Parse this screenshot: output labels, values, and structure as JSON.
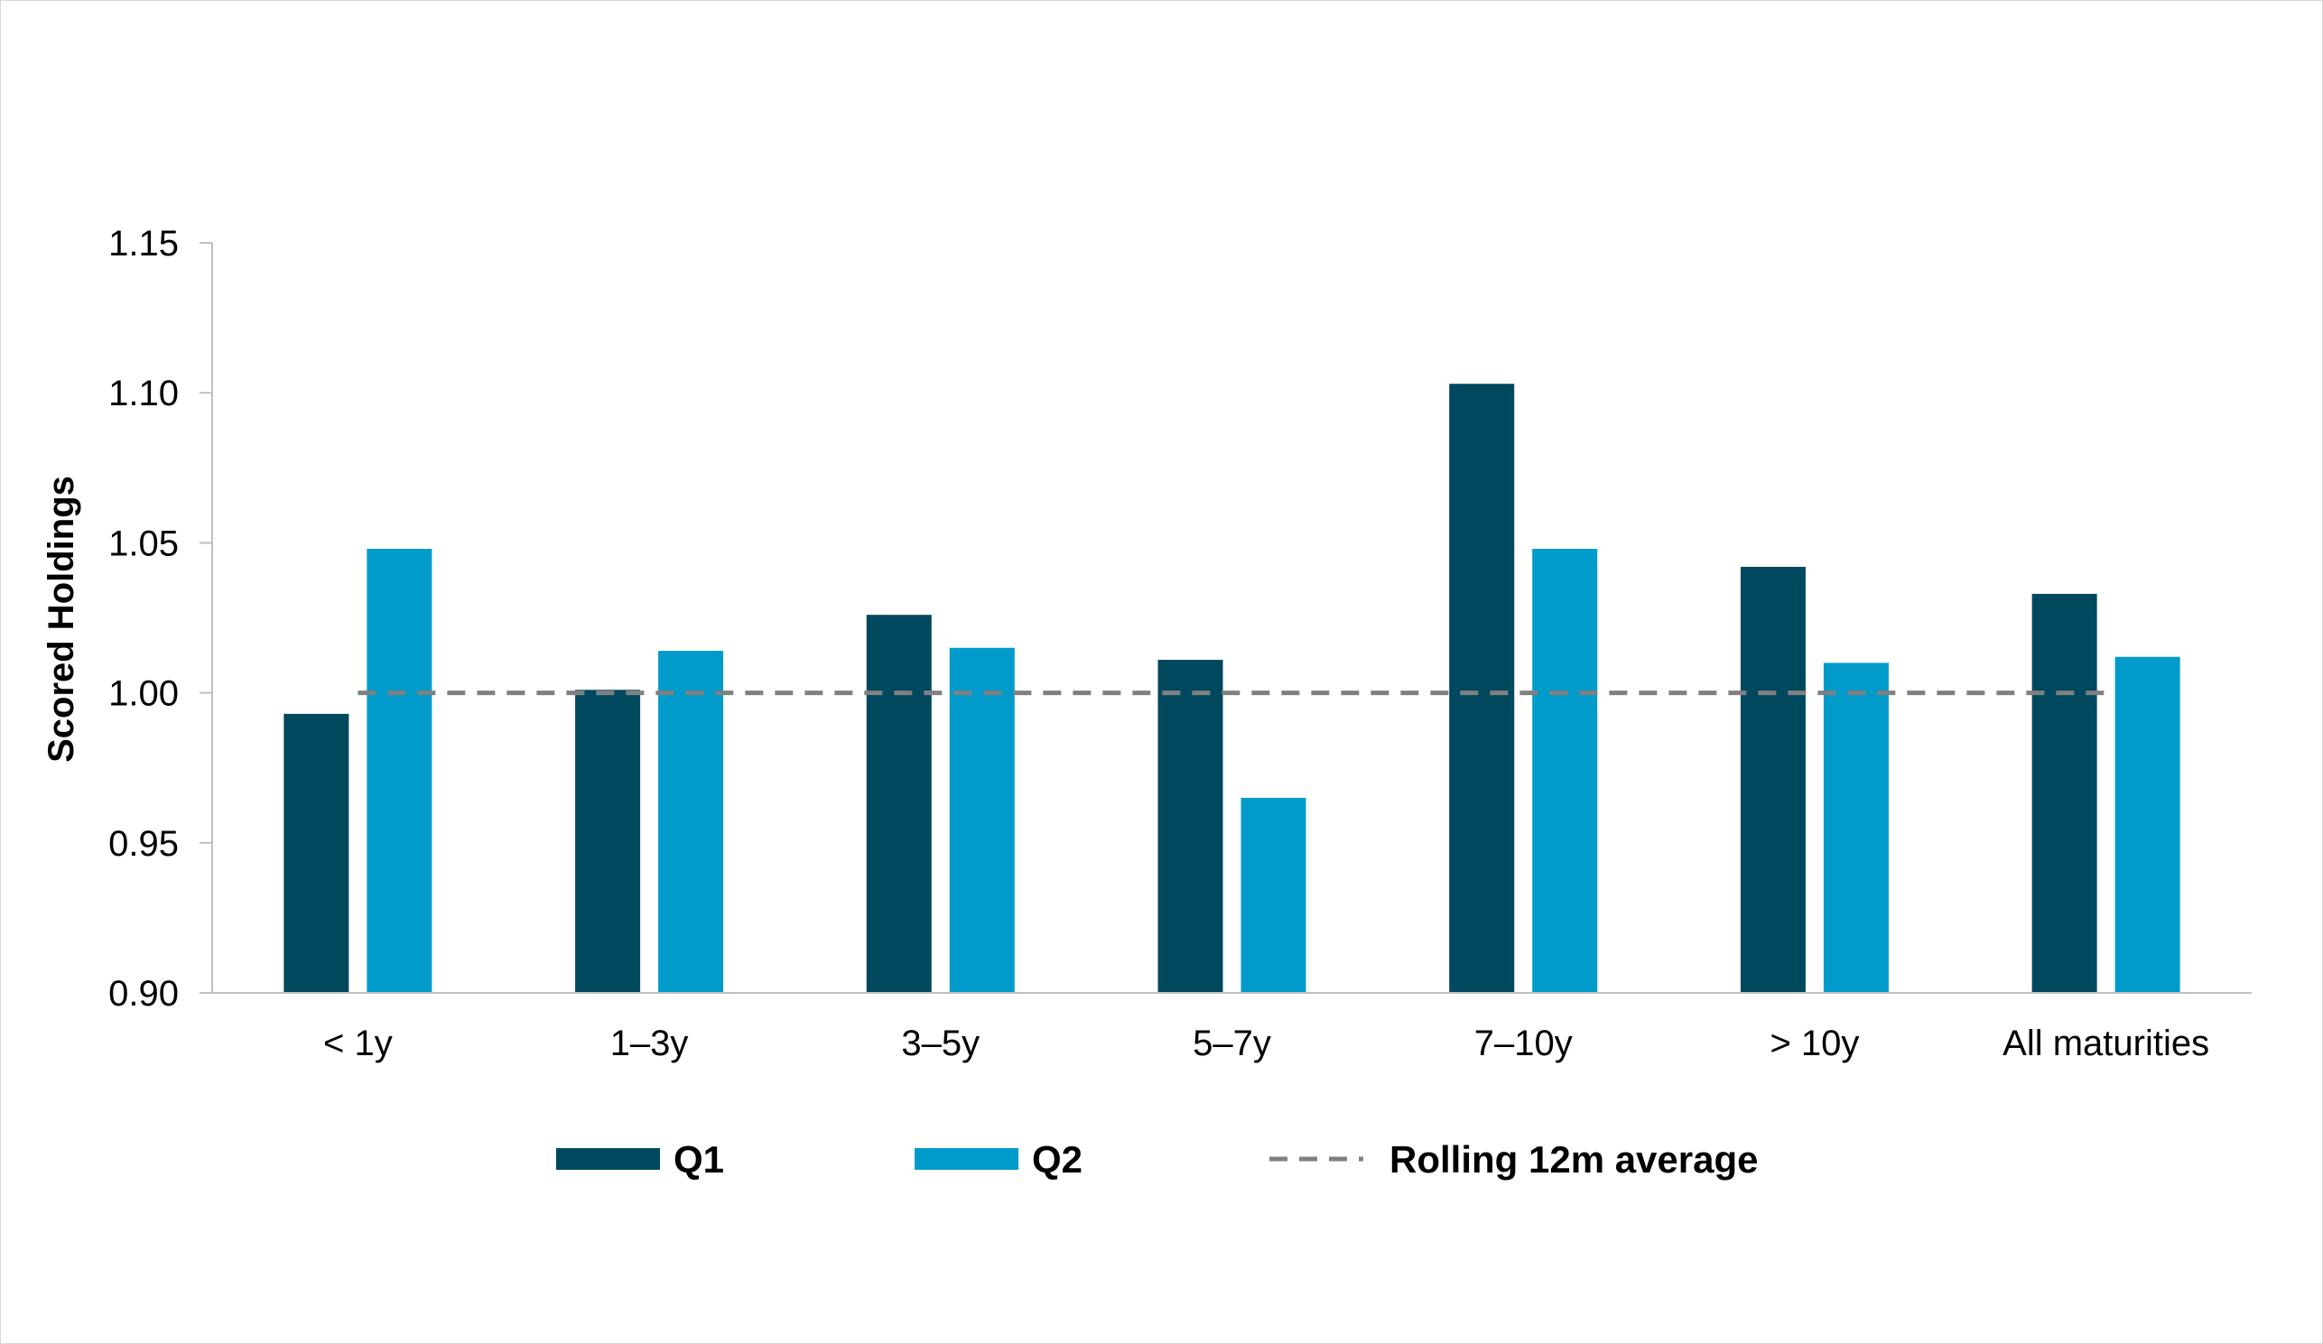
{
  "chart_data": {
    "type": "bar",
    "title": "",
    "xlabel": "",
    "ylabel": "Scored Holdings",
    "ylim": [
      0.9,
      1.15
    ],
    "yticks": [
      "0.90",
      "0.95",
      "1.00",
      "1.05",
      "1.10",
      "1.15"
    ],
    "grid": false,
    "legend_position": "bottom",
    "categories": [
      "< 1y",
      "1–3y",
      "3–5y",
      "5–7y",
      "7–10y",
      "> 10y",
      "All maturities"
    ],
    "series": [
      {
        "name": "Q1",
        "color": "#00485e",
        "values": [
          0.993,
          1.001,
          1.026,
          1.011,
          1.103,
          1.042,
          1.033
        ]
      },
      {
        "name": "Q2",
        "color": "#009bca",
        "values": [
          1.048,
          1.014,
          1.015,
          0.965,
          1.048,
          1.01,
          1.012
        ]
      }
    ],
    "reference_line": {
      "name": "Rolling 12m average",
      "value": 1.0,
      "color": "#808080",
      "style": "dashed"
    }
  }
}
